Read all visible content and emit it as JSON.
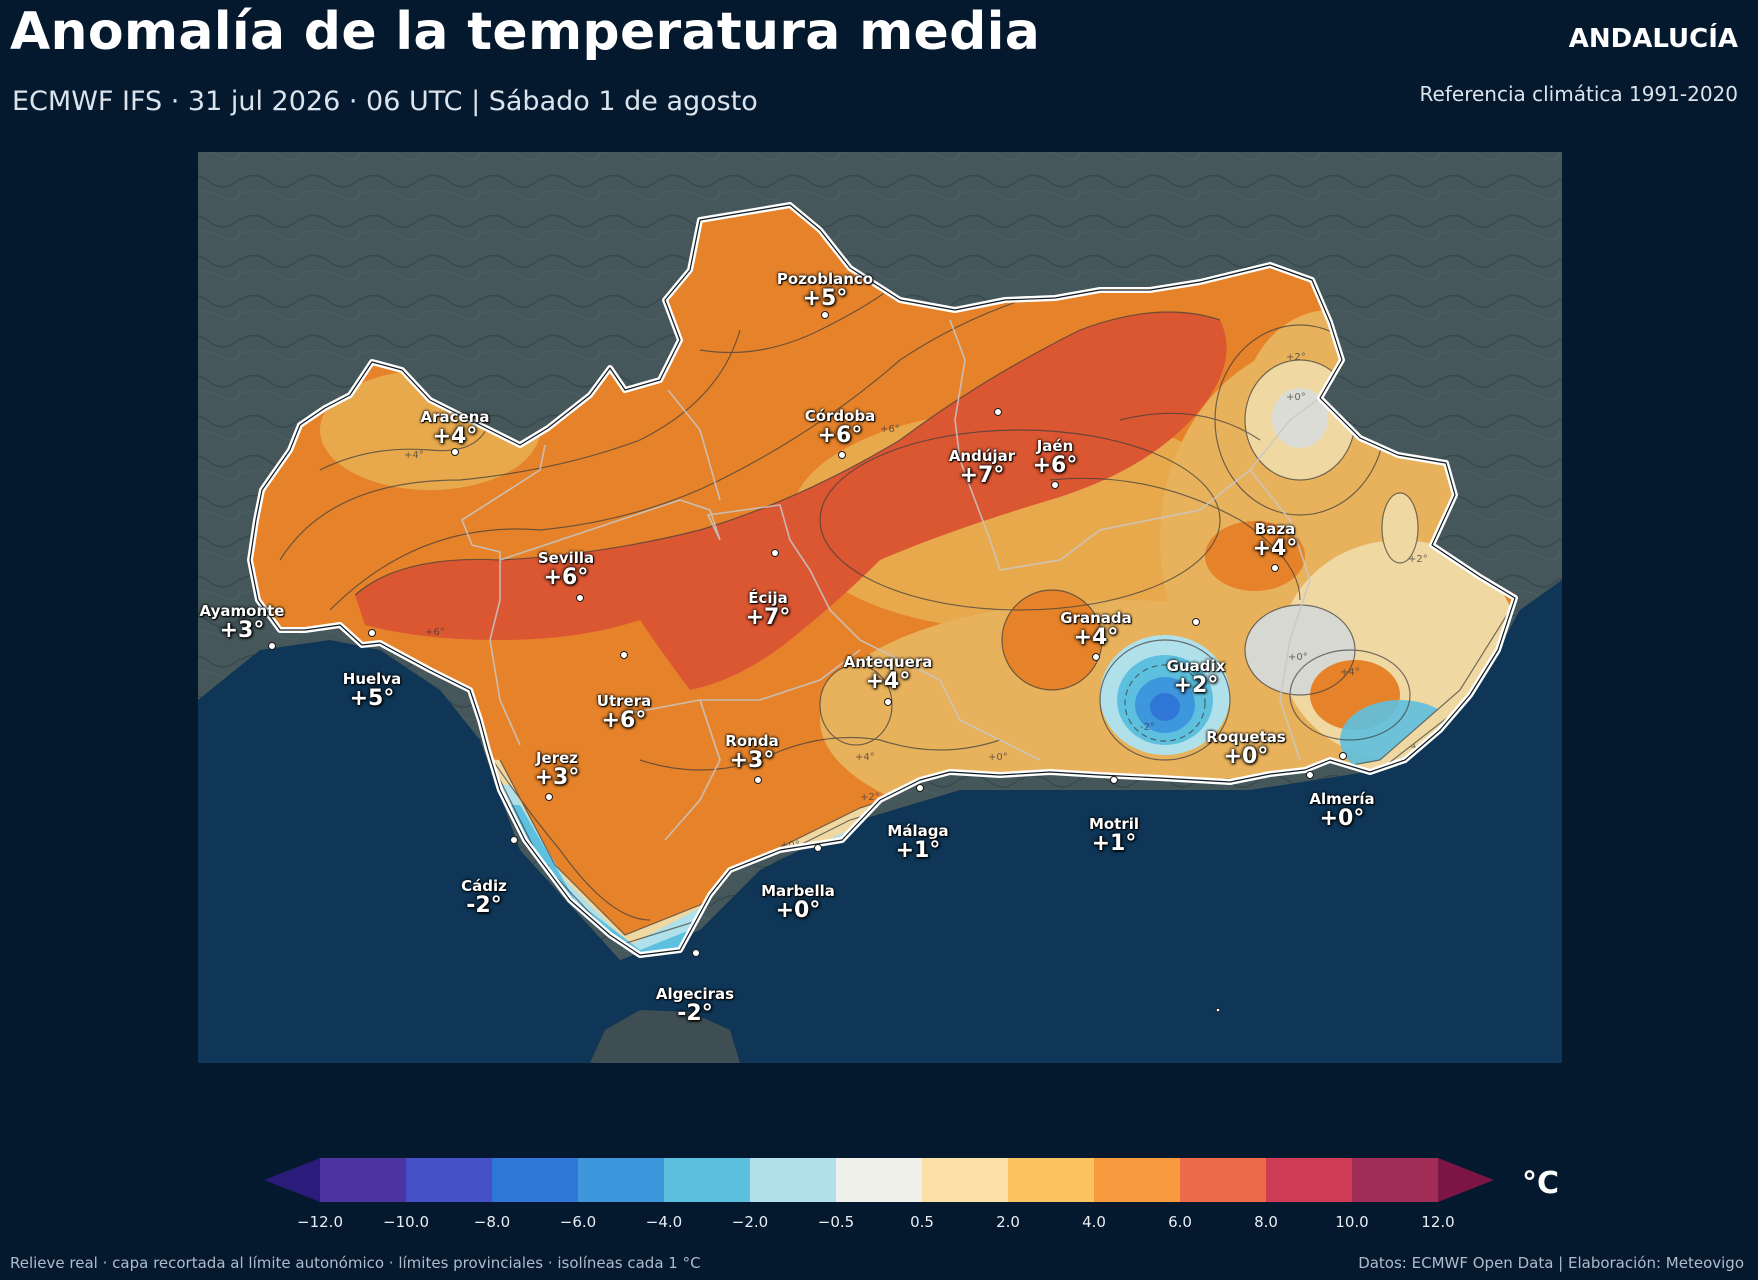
{
  "header": {
    "title": "Anomalía de la temperatura media",
    "region": "ANDALUCÍA",
    "subtitle": "ECMWF IFS · 31 jul 2026 · 06 UTC  |  Sábado 1 de agosto",
    "reference": "Referencia climática 1991-2020"
  },
  "map": {
    "cities": [
      {
        "name": "Pozoblanco",
        "value": "+5°"
      },
      {
        "name": "Aracena",
        "value": "+4°"
      },
      {
        "name": "Córdoba",
        "value": "+6°"
      },
      {
        "name": "Andújar",
        "value": "+7°"
      },
      {
        "name": "Jaén",
        "value": "+6°"
      },
      {
        "name": "Baza",
        "value": "+4°"
      },
      {
        "name": "Sevilla",
        "value": "+6°"
      },
      {
        "name": "Écija",
        "value": "+7°"
      },
      {
        "name": "Ayamonte",
        "value": "+3°"
      },
      {
        "name": "Granada",
        "value": "+4°"
      },
      {
        "name": "Huelva",
        "value": "+5°"
      },
      {
        "name": "Antequera",
        "value": "+4°"
      },
      {
        "name": "Guadix",
        "value": "+2°"
      },
      {
        "name": "Utrera",
        "value": "+6°"
      },
      {
        "name": "Roquetas",
        "value": "+0°"
      },
      {
        "name": "Ronda",
        "value": "+3°"
      },
      {
        "name": "Jerez",
        "value": "+3°"
      },
      {
        "name": "Almería",
        "value": "+0°"
      },
      {
        "name": "Motril",
        "value": "+1°"
      },
      {
        "name": "Málaga",
        "value": "+1°"
      },
      {
        "name": "Cádiz",
        "value": "-2°"
      },
      {
        "name": "Marbella",
        "value": "+0°"
      },
      {
        "name": "Algeciras",
        "value": "-2°"
      }
    ],
    "isoline_labels": [
      "+4°",
      "+6°",
      "+2°",
      "+0°",
      "-2°"
    ]
  },
  "colorbar": {
    "unit": "°C",
    "ticks": [
      "−12.0",
      "−10.0",
      "−8.0",
      "−6.0",
      "−4.0",
      "−2.0",
      "−0.5",
      "0.5",
      "2.0",
      "4.0",
      "6.0",
      "8.0",
      "10.0",
      "12.0"
    ],
    "under_color": "#2b1b7a",
    "over_color": "#7a1545",
    "colors": [
      "#4b34a0",
      "#4350c6",
      "#2f76d6",
      "#3e96dc",
      "#5ec0df",
      "#b0e0ea",
      "#f0f0ea",
      "#fde0a8",
      "#fbc35f",
      "#f89a3e",
      "#ec6a48",
      "#cf3c55",
      "#a12c55"
    ]
  },
  "footer": {
    "left": "Relieve real · capa recortada al límite autonómico · límites provinciales · isolíneas cada 1 °C",
    "right": "Datos: ECMWF Open Data | Elaboración: Meteovigo"
  }
}
